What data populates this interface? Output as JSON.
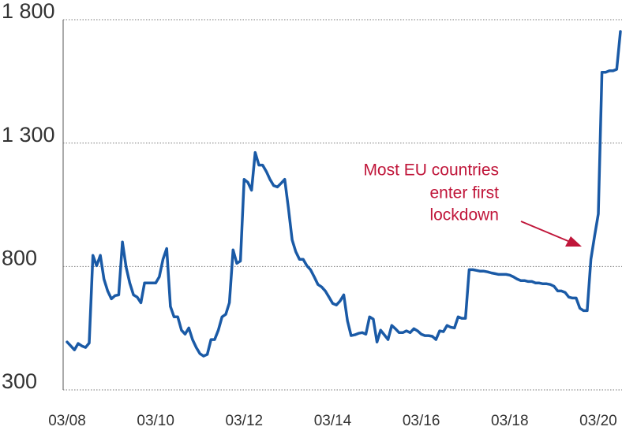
{
  "chart_data": {
    "type": "line",
    "annotation": [
      "Most EU countries",
      "enter first",
      "lockdown"
    ],
    "categories": [
      "03/08",
      null,
      null,
      null,
      null,
      null,
      null,
      null,
      null,
      null,
      null,
      null,
      null,
      null,
      null,
      null,
      null,
      null,
      null,
      null,
      null,
      null,
      null,
      null,
      "03/10",
      null,
      null,
      null,
      null,
      null,
      null,
      null,
      null,
      null,
      null,
      null,
      null,
      null,
      null,
      null,
      null,
      null,
      null,
      null,
      null,
      null,
      null,
      null,
      "03/12",
      null,
      null,
      null,
      null,
      null,
      null,
      null,
      null,
      null,
      null,
      null,
      null,
      null,
      null,
      null,
      null,
      null,
      null,
      null,
      null,
      null,
      null,
      null,
      "03/14",
      null,
      null,
      null,
      null,
      null,
      null,
      null,
      null,
      null,
      null,
      null,
      null,
      null,
      null,
      null,
      null,
      null,
      null,
      null,
      null,
      null,
      null,
      null,
      "03/16",
      null,
      null,
      null,
      null,
      null,
      null,
      null,
      null,
      null,
      null,
      null,
      null,
      null,
      null,
      null,
      null,
      null,
      null,
      null,
      null,
      null,
      null,
      null,
      "03/18",
      null,
      null,
      null,
      null,
      null,
      null,
      null,
      null,
      null,
      null,
      null,
      null,
      null,
      null,
      null,
      null,
      null,
      null,
      null,
      null,
      null,
      null,
      null,
      "03/20",
      null,
      null,
      null,
      null,
      null,
      null
    ],
    "values": [
      494,
      478,
      462,
      488,
      478,
      472,
      490,
      845,
      803,
      845,
      749,
      701,
      669,
      682,
      685,
      899,
      797,
      733,
      685,
      676,
      653,
      733,
      733,
      733,
      733,
      758,
      829,
      873,
      638,
      596,
      596,
      542,
      526,
      551,
      504,
      472,
      447,
      437,
      444,
      504,
      504,
      542,
      596,
      606,
      653,
      867,
      813,
      822,
      1153,
      1141,
      1109,
      1262,
      1211,
      1211,
      1185,
      1153,
      1128,
      1122,
      1137,
      1153,
      1036,
      908,
      860,
      829,
      829,
      803,
      787,
      758,
      727,
      717,
      701,
      676,
      650,
      644,
      660,
      685,
      580,
      520,
      523,
      529,
      532,
      526,
      596,
      587,
      494,
      542,
      523,
      504,
      561,
      548,
      532,
      532,
      539,
      532,
      548,
      539,
      526,
      520,
      520,
      517,
      504,
      539,
      536,
      561,
      554,
      551,
      596,
      590,
      590,
      787,
      787,
      784,
      781,
      781,
      778,
      774,
      771,
      768,
      768,
      768,
      765,
      758,
      749,
      743,
      743,
      739,
      739,
      733,
      733,
      730,
      730,
      727,
      720,
      701,
      701,
      695,
      676,
      672,
      672,
      631,
      621,
      621,
      829,
      924,
      1013,
      1587,
      1587,
      1593,
      1593,
      1599,
      1752
    ],
    "color": "#1a5aa6",
    "ylim": [
      300,
      1800
    ],
    "yticks": [
      {
        "value": 300,
        "label": "300"
      },
      800,
      {
        "value": 1300,
        "label": "1 300"
      },
      {
        "value": 1800,
        "label": "1 800"
      }
    ],
    "grid": true
  }
}
